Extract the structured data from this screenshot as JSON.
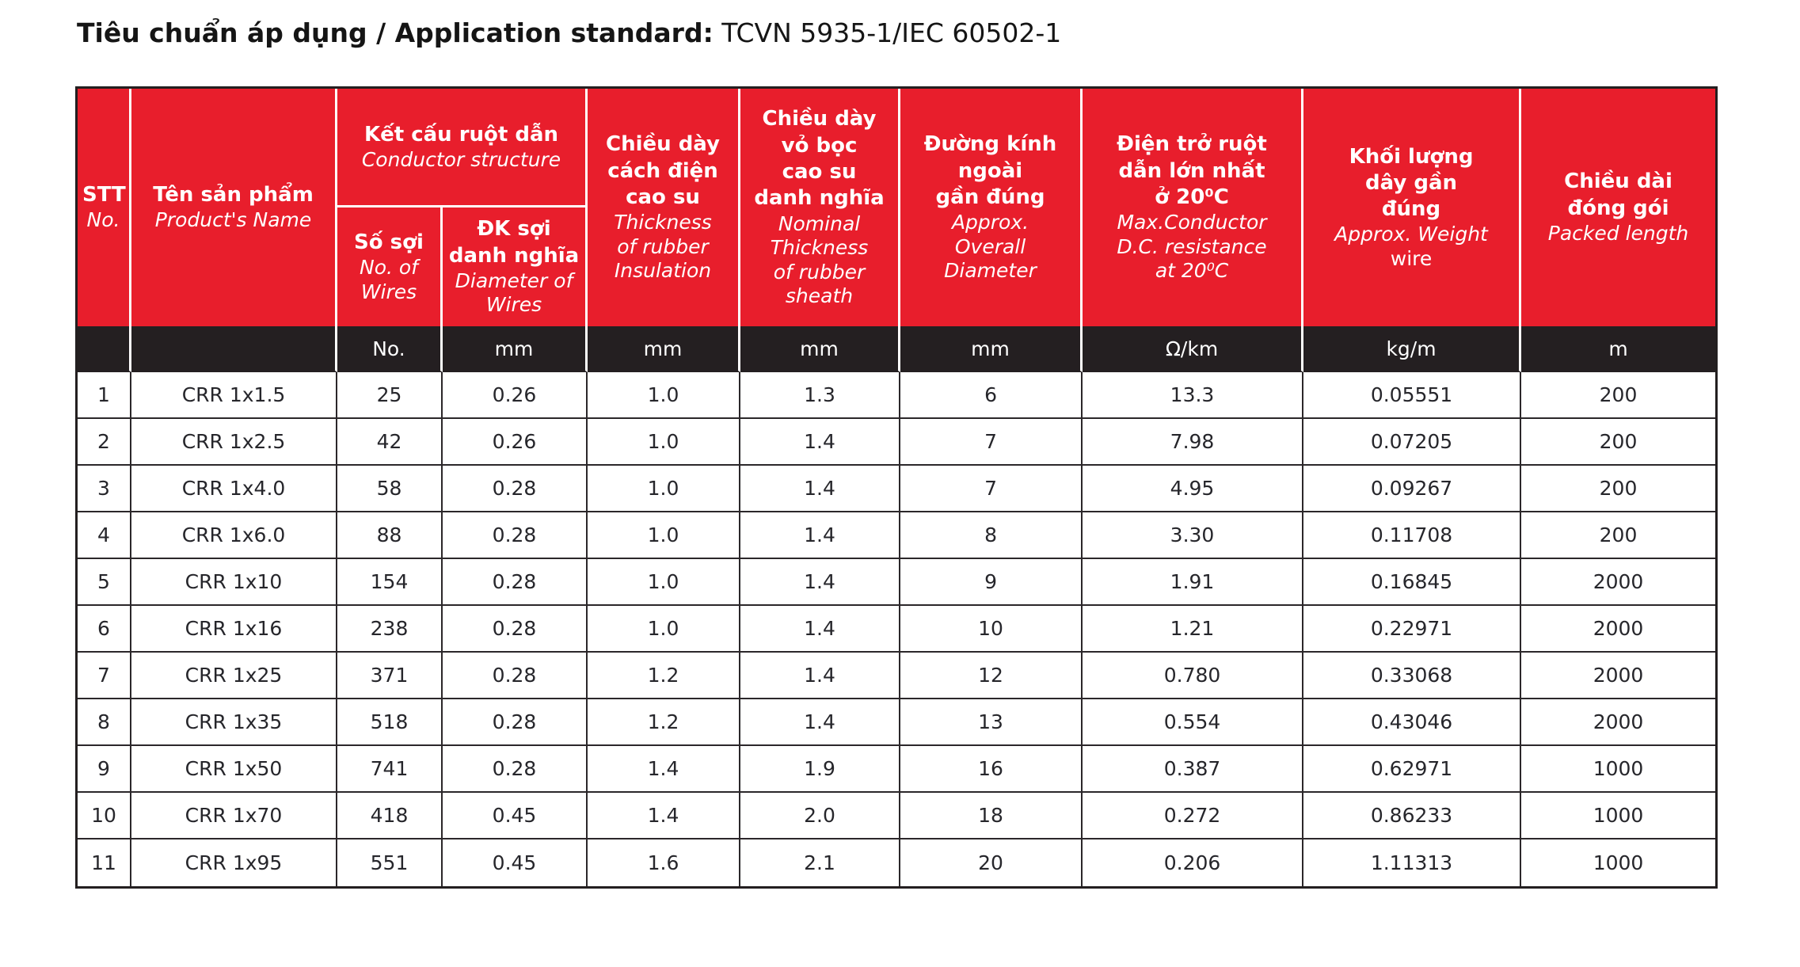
{
  "page": {
    "title_bold": "Tiêu chuẩn áp dụng / Application standard:",
    "title_regular": " TCVN 5935-1/IEC 60502-1"
  },
  "colors": {
    "header_red": "#e81e2c",
    "units_row_black": "#241f21",
    "border_black": "#231f20",
    "data_text": "#26262b",
    "header_text": "#ffffff"
  },
  "table": {
    "header": {
      "stt": {
        "vi": "STT",
        "en": "No."
      },
      "product": {
        "vi": "Tên sản phẩm",
        "en": "Product's Name"
      },
      "conductor_group": {
        "vi": "Kết cấu ruột dẫn",
        "en": "Conductor structure"
      },
      "no_of_wires": {
        "vi": "Số sợi",
        "en": "No. of\nWires"
      },
      "diameter_of_wires": {
        "vi": "ĐK sợi\ndanh nghĩa",
        "en": "Diameter of\nWires"
      },
      "insulation": {
        "vi": "Chiều dày\ncách điện\ncao su",
        "en": "Thickness\nof rubber\nInsulation"
      },
      "sheath": {
        "vi": "Chiều dày\nvỏ bọc\ncao su\ndanh nghĩa",
        "en": "Nominal\nThickness\nof rubber\nsheath"
      },
      "overall_diameter": {
        "vi": "Đường kính\nngoài\ngần đúng",
        "en": "Approx.\nOverall\nDiameter"
      },
      "resistance": {
        "vi": "Điện trở ruột\ndẫn lớn nhất\nở 20⁰C",
        "en": "Max.Conductor\nD.C. resistance\nat 20⁰C"
      },
      "weight": {
        "vi": "Khối lượng\ndây gần\nđúng",
        "en": "Approx. Weight",
        "en2": "wire"
      },
      "packed_length": {
        "vi": "Chiều dài\nđóng gói",
        "en": "Packed length"
      }
    },
    "units_row": [
      "",
      "",
      "No.",
      "mm",
      "mm",
      "mm",
      "mm",
      "Ω/km",
      "kg/m",
      "m"
    ],
    "rows": [
      [
        "1",
        "CRR 1x1.5",
        "25",
        "0.26",
        "1.0",
        "1.3",
        "6",
        "13.3",
        "0.05551",
        "200"
      ],
      [
        "2",
        "CRR 1x2.5",
        "42",
        "0.26",
        "1.0",
        "1.4",
        "7",
        "7.98",
        "0.07205",
        "200"
      ],
      [
        "3",
        "CRR 1x4.0",
        "58",
        "0.28",
        "1.0",
        "1.4",
        "7",
        "4.95",
        "0.09267",
        "200"
      ],
      [
        "4",
        "CRR 1x6.0",
        "88",
        "0.28",
        "1.0",
        "1.4",
        "8",
        "3.30",
        "0.11708",
        "200"
      ],
      [
        "5",
        "CRR 1x10",
        "154",
        "0.28",
        "1.0",
        "1.4",
        "9",
        "1.91",
        "0.16845",
        "2000"
      ],
      [
        "6",
        "CRR 1x16",
        "238",
        "0.28",
        "1.0",
        "1.4",
        "10",
        "1.21",
        "0.22971",
        "2000"
      ],
      [
        "7",
        "CRR 1x25",
        "371",
        "0.28",
        "1.2",
        "1.4",
        "12",
        "0.780",
        "0.33068",
        "2000"
      ],
      [
        "8",
        "CRR 1x35",
        "518",
        "0.28",
        "1.2",
        "1.4",
        "13",
        "0.554",
        "0.43046",
        "2000"
      ],
      [
        "9",
        "CRR 1x50",
        "741",
        "0.28",
        "1.4",
        "1.9",
        "16",
        "0.387",
        "0.62971",
        "1000"
      ],
      [
        "10",
        "CRR 1x70",
        "418",
        "0.45",
        "1.4",
        "2.0",
        "18",
        "0.272",
        "0.86233",
        "1000"
      ],
      [
        "11",
        "CRR 1x95",
        "551",
        "0.45",
        "1.6",
        "2.1",
        "20",
        "0.206",
        "1.11313",
        "1000"
      ]
    ]
  }
}
